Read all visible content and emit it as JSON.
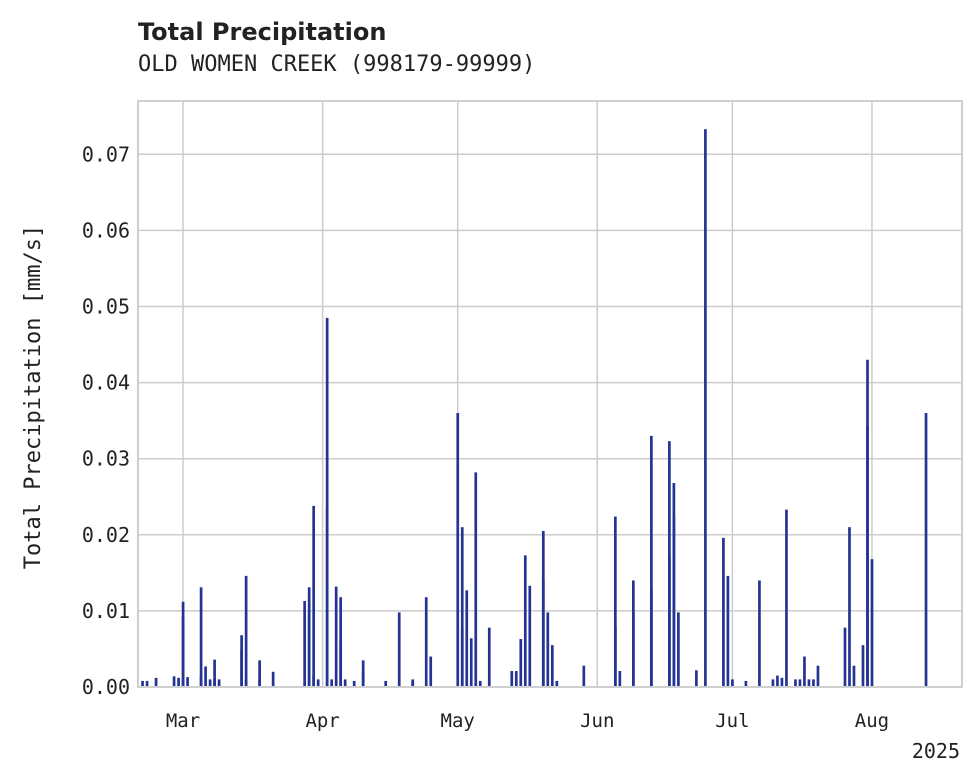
{
  "chart_data": {
    "type": "bar",
    "title": "Total Precipitation",
    "subtitle": "OLD WOMEN CREEK (998179-99999)",
    "ylabel": "Total Precipitation [mm/s]",
    "xlabel": "",
    "year_label": "2025",
    "ylim": [
      0,
      0.077
    ],
    "yticks": [
      0.0,
      0.01,
      0.02,
      0.03,
      0.04,
      0.05,
      0.06,
      0.07
    ],
    "ytick_labels": [
      "0.00",
      "0.01",
      "0.02",
      "0.03",
      "0.04",
      "0.05",
      "0.06",
      "0.07"
    ],
    "xlim": [
      "2025-02-19",
      "2025-08-21"
    ],
    "xticks": [
      {
        "date": "2025-03-01",
        "label": "Mar"
      },
      {
        "date": "2025-04-01",
        "label": "Apr"
      },
      {
        "date": "2025-05-01",
        "label": "May"
      },
      {
        "date": "2025-06-01",
        "label": "Jun"
      },
      {
        "date": "2025-07-01",
        "label": "Jul"
      },
      {
        "date": "2025-08-01",
        "label": "Aug"
      }
    ],
    "grid": true,
    "color": "#253494",
    "series": [
      {
        "x": [
          "2025-02-20",
          "2025-02-21",
          "2025-02-23",
          "2025-02-27",
          "2025-02-28",
          "2025-03-01",
          "2025-03-01",
          "2025-03-02",
          "2025-03-05",
          "2025-03-05",
          "2025-03-06",
          "2025-03-07",
          "2025-03-08",
          "2025-03-08",
          "2025-03-09",
          "2025-03-14",
          "2025-03-14",
          "2025-03-15",
          "2025-03-15",
          "2025-03-18",
          "2025-03-18",
          "2025-03-21",
          "2025-03-28",
          "2025-03-29",
          "2025-03-29",
          "2025-03-30",
          "2025-03-30",
          "2025-03-31",
          "2025-04-02",
          "2025-04-02",
          "2025-04-03",
          "2025-04-04",
          "2025-04-05",
          "2025-04-05",
          "2025-04-06",
          "2025-04-08",
          "2025-04-10",
          "2025-04-10",
          "2025-04-15",
          "2025-04-18",
          "2025-04-21",
          "2025-04-21",
          "2025-04-24",
          "2025-04-25",
          "2025-05-01",
          "2025-05-02",
          "2025-05-02",
          "2025-05-03",
          "2025-05-04",
          "2025-05-05",
          "2025-05-06",
          "2025-05-08",
          "2025-05-13",
          "2025-05-14",
          "2025-05-15",
          "2025-05-16",
          "2025-05-17",
          "2025-05-20",
          "2025-05-20",
          "2025-05-21",
          "2025-05-22",
          "2025-05-23",
          "2025-05-29",
          "2025-06-05",
          "2025-06-05",
          "2025-06-06",
          "2025-06-09",
          "2025-06-09",
          "2025-06-13",
          "2025-06-13",
          "2025-06-17",
          "2025-06-17",
          "2025-06-18",
          "2025-06-18",
          "2025-06-19",
          "2025-06-23",
          "2025-06-25",
          "2025-06-29",
          "2025-06-30",
          "2025-07-01",
          "2025-07-04",
          "2025-07-07",
          "2025-07-10",
          "2025-07-11",
          "2025-07-12",
          "2025-07-13",
          "2025-07-15",
          "2025-07-16",
          "2025-07-17",
          "2025-07-18",
          "2025-07-19",
          "2025-07-20",
          "2025-07-26",
          "2025-07-27",
          "2025-07-28",
          "2025-07-30",
          "2025-07-31",
          "2025-07-31",
          "2025-08-01",
          "2025-08-13"
        ],
        "values": [
          0.0008,
          0.0008,
          0.0012,
          0.0014,
          0.0012,
          0.0112,
          0.0092,
          0.0013,
          0.0131,
          0.0015,
          0.0027,
          0.001,
          0.0011,
          0.0036,
          0.001,
          0.0048,
          0.0068,
          0.0146,
          0.001,
          0.001,
          0.0035,
          0.002,
          0.0113,
          0.0095,
          0.0131,
          0.0238,
          0.0015,
          0.001,
          0.0485,
          0.0238,
          0.001,
          0.0132,
          0.0118,
          0.0061,
          0.001,
          0.0008,
          0.0035,
          0.002,
          0.0008,
          0.0098,
          0.001,
          0.0008,
          0.0118,
          0.004,
          0.036,
          0.021,
          0.0078,
          0.0127,
          0.0064,
          0.0282,
          0.0008,
          0.0078,
          0.0021,
          0.0021,
          0.0063,
          0.0173,
          0.0133,
          0.014,
          0.0205,
          0.0098,
          0.0055,
          0.0008,
          0.0028,
          0.0224,
          0.008,
          0.0021,
          0.014,
          0.0098,
          0.0128,
          0.033,
          0.0323,
          0.0173,
          0.0224,
          0.0268,
          0.0098,
          0.0022,
          0.0733,
          0.0196,
          0.0146,
          0.001,
          0.0008,
          0.014,
          0.001,
          0.0015,
          0.0012,
          0.0233,
          0.001,
          0.001,
          0.004,
          0.001,
          0.001,
          0.0028,
          0.0078,
          0.021,
          0.0028,
          0.0055,
          0.043,
          0.0343,
          0.0168,
          0.036
        ]
      }
    ]
  }
}
